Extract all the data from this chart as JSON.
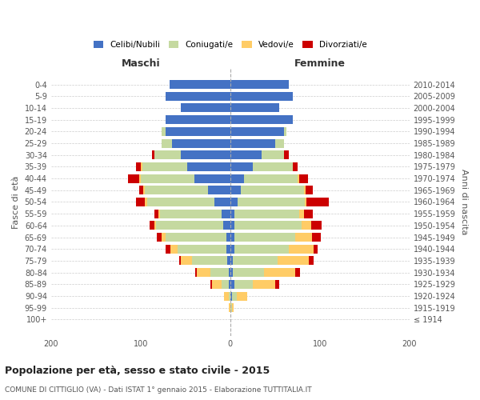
{
  "age_groups": [
    "100+",
    "95-99",
    "90-94",
    "85-89",
    "80-84",
    "75-79",
    "70-74",
    "65-69",
    "60-64",
    "55-59",
    "50-54",
    "45-49",
    "40-44",
    "35-39",
    "30-34",
    "25-29",
    "20-24",
    "15-19",
    "10-14",
    "5-9",
    "0-4"
  ],
  "birth_years": [
    "≤ 1914",
    "1915-1919",
    "1920-1924",
    "1925-1929",
    "1930-1934",
    "1935-1939",
    "1940-1944",
    "1945-1949",
    "1950-1954",
    "1955-1959",
    "1960-1964",
    "1965-1969",
    "1970-1974",
    "1975-1979",
    "1980-1984",
    "1985-1989",
    "1990-1994",
    "1995-1999",
    "2000-2004",
    "2005-2009",
    "2010-2014"
  ],
  "males": {
    "celibi": [
      0,
      0,
      0,
      2,
      2,
      3,
      4,
      4,
      8,
      10,
      18,
      25,
      40,
      48,
      55,
      65,
      72,
      72,
      55,
      72,
      68
    ],
    "coniugati": [
      0,
      0,
      2,
      8,
      20,
      40,
      55,
      68,
      75,
      68,
      75,
      70,
      60,
      50,
      30,
      12,
      5,
      0,
      0,
      0,
      0
    ],
    "vedovi": [
      0,
      2,
      5,
      10,
      15,
      12,
      8,
      5,
      2,
      2,
      2,
      2,
      2,
      2,
      0,
      0,
      0,
      0,
      0,
      0,
      0
    ],
    "divorziati": [
      0,
      0,
      0,
      2,
      2,
      2,
      5,
      5,
      5,
      5,
      10,
      5,
      12,
      5,
      2,
      0,
      0,
      0,
      0,
      0,
      0
    ]
  },
  "females": {
    "nubili": [
      0,
      0,
      2,
      5,
      3,
      3,
      5,
      5,
      5,
      5,
      8,
      12,
      15,
      25,
      35,
      50,
      60,
      70,
      55,
      70,
      65
    ],
    "coniugate": [
      0,
      2,
      5,
      20,
      35,
      50,
      60,
      68,
      75,
      72,
      75,
      70,
      60,
      45,
      25,
      10,
      3,
      0,
      0,
      0,
      0
    ],
    "vedove": [
      0,
      2,
      12,
      25,
      35,
      35,
      28,
      18,
      10,
      5,
      2,
      2,
      2,
      0,
      0,
      0,
      0,
      0,
      0,
      0,
      0
    ],
    "divorziate": [
      0,
      0,
      0,
      5,
      5,
      5,
      5,
      10,
      12,
      10,
      25,
      8,
      10,
      5,
      5,
      0,
      0,
      0,
      0,
      0,
      0
    ]
  },
  "colors": {
    "celibi_nubili": "#4472C4",
    "coniugati": "#C5D9A0",
    "vedovi": "#FFCC66",
    "divorziati": "#CC0000"
  },
  "xlim": 200,
  "title": "Popolazione per età, sesso e stato civile - 2015",
  "subtitle": "COMUNE DI CITTIGLIO (VA) - Dati ISTAT 1° gennaio 2015 - Elaborazione TUTTITALIA.IT",
  "ylabel_left": "Fasce di età",
  "ylabel_right": "Anni di nascita",
  "xlabel_left": "Maschi",
  "xlabel_right": "Femmine",
  "legend_labels": [
    "Celibi/Nubili",
    "Coniugati/e",
    "Vedovi/e",
    "Divorziati/e"
  ],
  "background_color": "#ffffff",
  "grid_color": "#cccccc"
}
